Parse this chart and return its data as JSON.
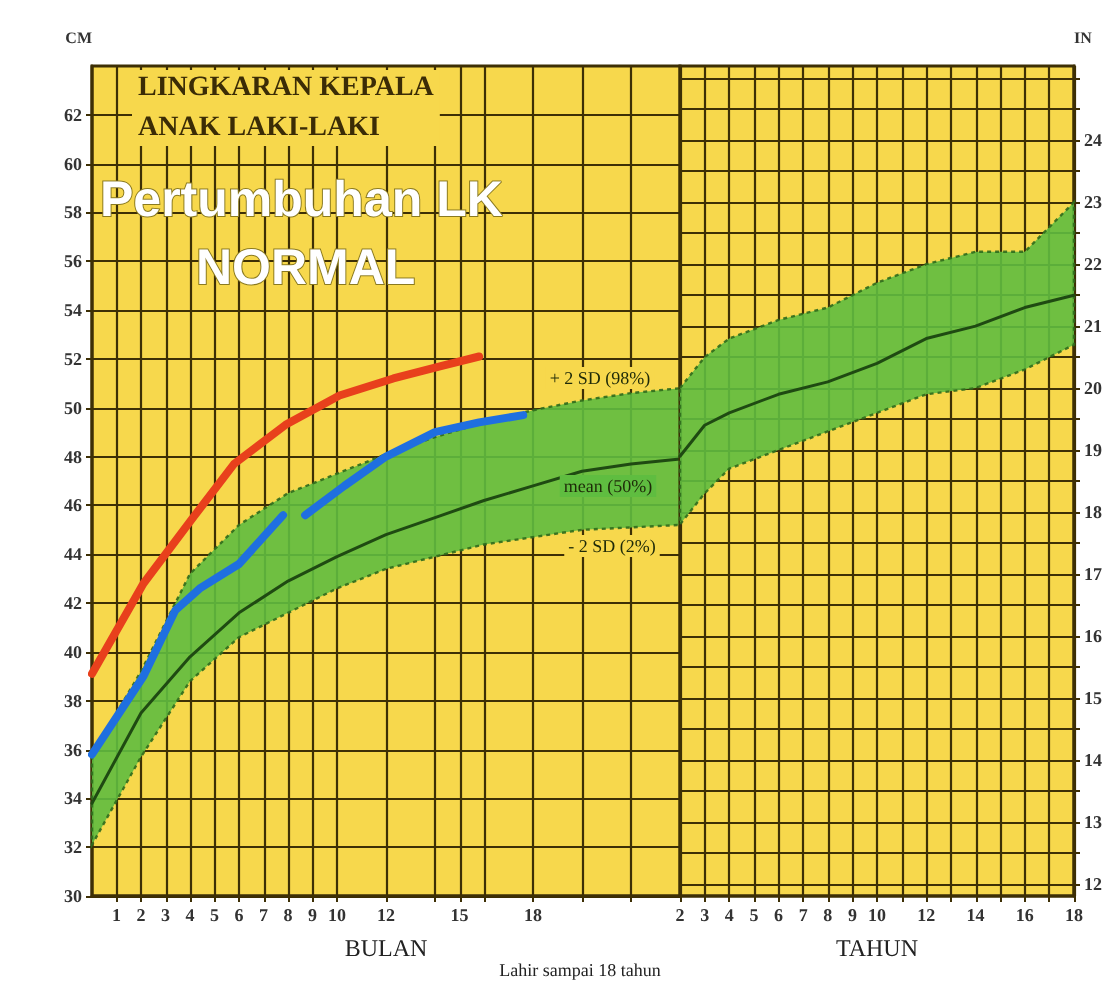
{
  "chart_data": [
    {
      "type": "line",
      "title": "LINGKARAN KEPALA",
      "subtitle": "ANAK LAKI-LAKI",
      "xlabel": "BULAN",
      "ylabel": "CM",
      "xlim": [
        0,
        24
      ],
      "ylim": [
        30,
        64
      ],
      "xticks": [
        1,
        2,
        3,
        4,
        5,
        6,
        7,
        8,
        9,
        10,
        12,
        {
          "value": 14,
          "label": null
        },
        15,
        {
          "value": 16,
          "label": null
        },
        18,
        {
          "value": 20,
          "label": null
        },
        {
          "value": 22,
          "label": null
        }
      ],
      "yticks": [
        30,
        32,
        34,
        36,
        38,
        40,
        42,
        44,
        46,
        48,
        50,
        52,
        54,
        56,
        58,
        60,
        62
      ],
      "grid": true,
      "marker": "none",
      "line_style": "solid",
      "series": [
        {
          "color": "#1f4a12",
          "x": [
            0,
            2,
            4,
            6,
            8,
            10,
            12,
            14,
            16,
            18,
            20,
            22,
            24
          ],
          "values": [
            33.8,
            37.5,
            39.8,
            41.6,
            42.9,
            43.9,
            44.8,
            45.5,
            46.2,
            46.8,
            47.4,
            47.7,
            47.9
          ],
          "upper": [
            35.8,
            39.2,
            43.2,
            45.2,
            46.5,
            47.3,
            48.1,
            48.8,
            49.4,
            49.9,
            50.3,
            50.6,
            50.8
          ],
          "lower": [
            32.1,
            35.7,
            38.8,
            40.6,
            41.6,
            42.6,
            43.4,
            43.9,
            44.4,
            44.7,
            45.0,
            45.1,
            45.2
          ]
        },
        {
          "color": "#e8401c",
          "x": [
            0,
            2.1,
            4.2,
            5.8,
            7.9,
            10.1,
            12.3,
            14.2,
            15.8
          ],
          "values": [
            39.1,
            42.8,
            45.6,
            47.7,
            49.3,
            50.5,
            51.2,
            51.7,
            52.1
          ]
        },
        {
          "color": "#1f6fe0",
          "x": [
            0,
            2.1,
            3.4,
            4.4,
            6,
            7.8,
            8.2,
            8.7,
            10.3,
            12,
            14,
            15.8,
            17.6
          ],
          "values": [
            35.8,
            39.0,
            41.7,
            42.6,
            43.6,
            45.6,
            null,
            45.6,
            46.8,
            48.0,
            49.0,
            49.4,
            49.7
          ]
        }
      ],
      "annotations": [
        "Pertumbuhan LK",
        "NORMAL",
        "+ 2 SD (98%)",
        "mean (50%)",
        "- 2 SD (2%)",
        "Lahir sampai 18 tahun"
      ]
    },
    {
      "type": "line",
      "xlabel": "TAHUN",
      "ylabel": "IN",
      "xlim": [
        2,
        18
      ],
      "ylim": [
        11.8,
        25.2
      ],
      "xticks": [
        2,
        3,
        4,
        5,
        6,
        7,
        8,
        9,
        10,
        {
          "value": 11,
          "label": null
        },
        12,
        {
          "value": 13,
          "label": null
        },
        14,
        {
          "value": 15,
          "label": null
        },
        16,
        {
          "value": 17,
          "label": null
        },
        18
      ],
      "yticks": [
        12,
        {
          "value": 12.5,
          "label": null
        },
        13,
        {
          "value": 13.5,
          "label": null
        },
        14,
        {
          "value": 14.5,
          "label": null
        },
        15,
        {
          "value": 15.5,
          "label": null
        },
        16,
        {
          "value": 16.5,
          "label": null
        },
        17,
        {
          "value": 17.5,
          "label": null
        },
        18,
        {
          "value": 18.5,
          "label": null
        },
        19,
        {
          "value": 19.5,
          "label": null
        },
        20,
        {
          "value": 20.5,
          "label": null
        },
        21,
        {
          "value": 21.5,
          "label": null
        },
        22,
        {
          "value": 22.5,
          "label": null
        },
        23,
        {
          "value": 23.5,
          "label": null
        },
        24,
        {
          "value": 24.5,
          "label": null
        },
        {
          "value": 25,
          "label": null
        }
      ],
      "grid": true,
      "marker": "none",
      "line_style": "solid",
      "series": [
        {
          "color": "#1f4a12",
          "x": [
            2,
            3,
            4,
            6,
            8,
            10,
            12,
            14,
            16,
            18
          ],
          "values": [
            18.9,
            19.4,
            19.6,
            19.9,
            20.1,
            20.4,
            20.8,
            21.0,
            21.3,
            21.5
          ],
          "upper": [
            20.0,
            20.5,
            20.8,
            21.1,
            21.3,
            21.7,
            22.0,
            22.2,
            22.2,
            23.0
          ],
          "lower": [
            17.8,
            18.3,
            18.7,
            19.0,
            19.3,
            19.6,
            19.9,
            20.0,
            20.3,
            20.7
          ]
        }
      ]
    }
  ]
}
